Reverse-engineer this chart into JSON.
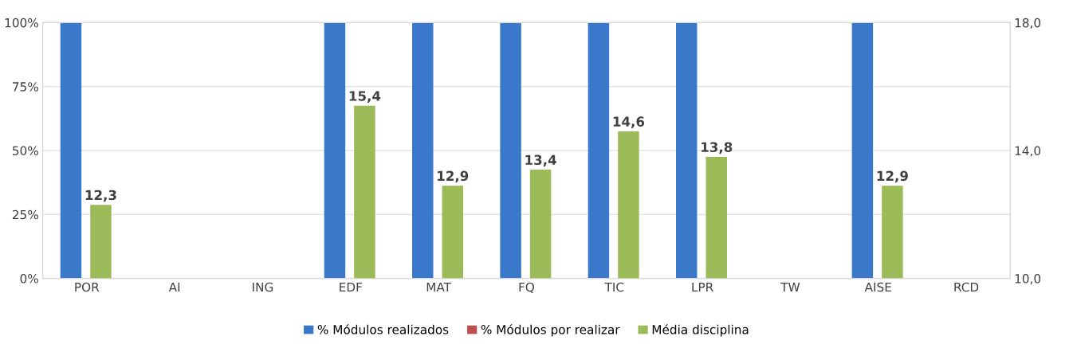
{
  "chart_data": {
    "type": "bar",
    "categories": [
      "POR",
      "AI",
      "ING",
      "EDF",
      "MAT",
      "FQ",
      "TIC",
      "LPR",
      "TW",
      "AISE",
      "RCD"
    ],
    "series": [
      {
        "name": "% Módulos realizados",
        "color": "#3a78c9",
        "values": [
          100,
          null,
          null,
          100,
          100,
          100,
          100,
          100,
          null,
          100,
          null
        ]
      },
      {
        "name": "% Módulos por realizar",
        "color": "#c0504d",
        "values": [
          0,
          null,
          null,
          0,
          0,
          0,
          0,
          0,
          null,
          0,
          null
        ]
      },
      {
        "name": "Média disciplina",
        "color": "#9bbb59",
        "axis": "y2",
        "values": [
          12.3,
          null,
          null,
          15.4,
          12.9,
          13.4,
          14.6,
          13.8,
          null,
          12.9,
          null
        ],
        "value_labels": [
          "12,3",
          null,
          null,
          "15,4",
          "12,9",
          "13,4",
          "14,6",
          "13,8",
          null,
          "12,9",
          null
        ]
      }
    ],
    "ylim": [
      0,
      100
    ],
    "yticks": [
      {
        "value": 0,
        "label": "0%"
      },
      {
        "value": 25,
        "label": "25%"
      },
      {
        "value": 50,
        "label": "50%"
      },
      {
        "value": 75,
        "label": "75%"
      },
      {
        "value": 100,
        "label": "100%"
      }
    ],
    "y2lim": [
      10,
      18
    ],
    "y2ticks": [
      {
        "value": 10,
        "label": "10,0"
      },
      {
        "value": 14,
        "label": "14,0"
      },
      {
        "value": 18,
        "label": "18,0"
      }
    ],
    "grid": "y",
    "legend": "bottom"
  }
}
